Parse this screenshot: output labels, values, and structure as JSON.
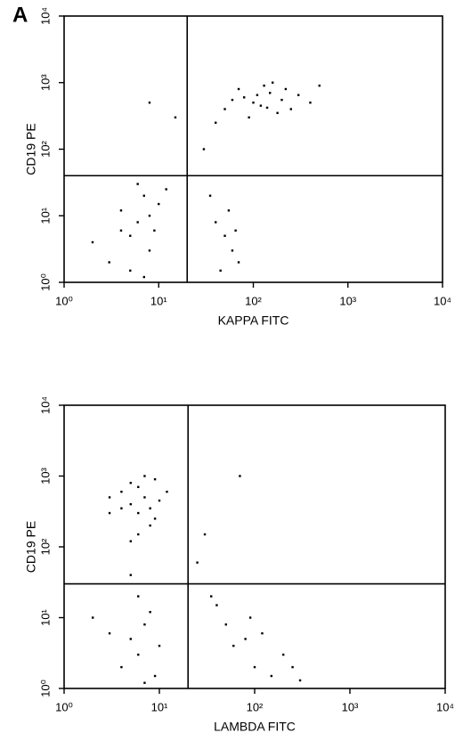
{
  "panel_label": "A",
  "chart_data": [
    {
      "type": "scatter",
      "x_label": "KAPPA FITC",
      "y_label": "CD19 PE",
      "xscale": "log",
      "yscale": "log",
      "color": "#000000",
      "xlim": [
        1,
        10000
      ],
      "ylim": [
        1,
        10000
      ],
      "xticks": [
        {
          "value": 1,
          "label": "10⁰"
        },
        {
          "value": 10,
          "label": "10¹"
        },
        {
          "value": 100,
          "label": "10²"
        },
        {
          "value": 1000,
          "label": "10³"
        },
        {
          "value": 10000,
          "label": "10⁴"
        }
      ],
      "yticks": [
        {
          "value": 1,
          "label": "10⁰"
        },
        {
          "value": 10,
          "label": "10¹"
        },
        {
          "value": 100,
          "label": "10²"
        },
        {
          "value": 1000,
          "label": "10³"
        },
        {
          "value": 10000,
          "label": "10⁴"
        }
      ],
      "quadrant_x": 20,
      "quadrant_y": 40,
      "x": [
        50,
        80,
        100,
        120,
        150,
        200,
        90,
        60,
        300,
        250,
        130,
        180,
        70,
        110,
        400,
        40,
        160,
        220,
        140,
        500,
        5,
        6,
        8,
        4,
        7,
        9,
        3,
        5,
        6,
        10,
        2,
        8,
        4,
        12,
        7,
        50,
        60,
        40,
        70,
        55,
        45,
        65,
        35,
        15,
        8,
        30
      ],
      "y": [
        400,
        600,
        500,
        450,
        700,
        550,
        300,
        550,
        650,
        400,
        900,
        350,
        800,
        650,
        500,
        250,
        1000,
        800,
        420,
        900,
        5,
        8,
        3,
        12,
        20,
        6,
        2,
        1.5,
        30,
        15,
        4,
        10,
        6,
        25,
        1.2,
        5,
        3,
        8,
        2,
        12,
        1.5,
        6,
        20,
        300,
        500,
        100
      ]
    },
    {
      "type": "scatter",
      "x_label": "LAMBDA FITC",
      "y_label": "CD19 PE",
      "xscale": "log",
      "yscale": "log",
      "color": "#000000",
      "xlim": [
        1,
        10000
      ],
      "ylim": [
        1,
        10000
      ],
      "xticks": [
        {
          "value": 1,
          "label": "10⁰"
        },
        {
          "value": 10,
          "label": "10¹"
        },
        {
          "value": 100,
          "label": "10²"
        },
        {
          "value": 1000,
          "label": "10³"
        },
        {
          "value": 10000,
          "label": "10⁴"
        }
      ],
      "yticks": [
        {
          "value": 1,
          "label": "10⁰"
        },
        {
          "value": 10,
          "label": "10¹"
        },
        {
          "value": 100,
          "label": "10²"
        },
        {
          "value": 1000,
          "label": "10³"
        },
        {
          "value": 10000,
          "label": "10⁴"
        }
      ],
      "quadrant_x": 20,
      "quadrant_y": 30,
      "x": [
        5,
        6,
        7,
        8,
        4,
        9,
        5,
        6,
        10,
        3,
        7,
        8,
        4,
        12,
        6,
        5,
        9,
        3,
        5,
        6,
        7,
        4,
        8,
        3,
        6,
        9,
        5,
        10,
        2,
        7,
        50,
        80,
        100,
        150,
        200,
        40,
        60,
        120,
        250,
        300,
        90,
        35,
        30,
        70,
        25
      ],
      "y": [
        400,
        300,
        500,
        350,
        600,
        250,
        800,
        150,
        450,
        500,
        1000,
        200,
        350,
        600,
        700,
        120,
        900,
        300,
        5,
        3,
        8,
        2,
        12,
        6,
        20,
        1.5,
        40,
        4,
        10,
        1.2,
        8,
        5,
        2,
        1.5,
        3,
        15,
        4,
        6,
        2,
        1.3,
        10,
        20,
        150,
        1000,
        60
      ]
    }
  ]
}
